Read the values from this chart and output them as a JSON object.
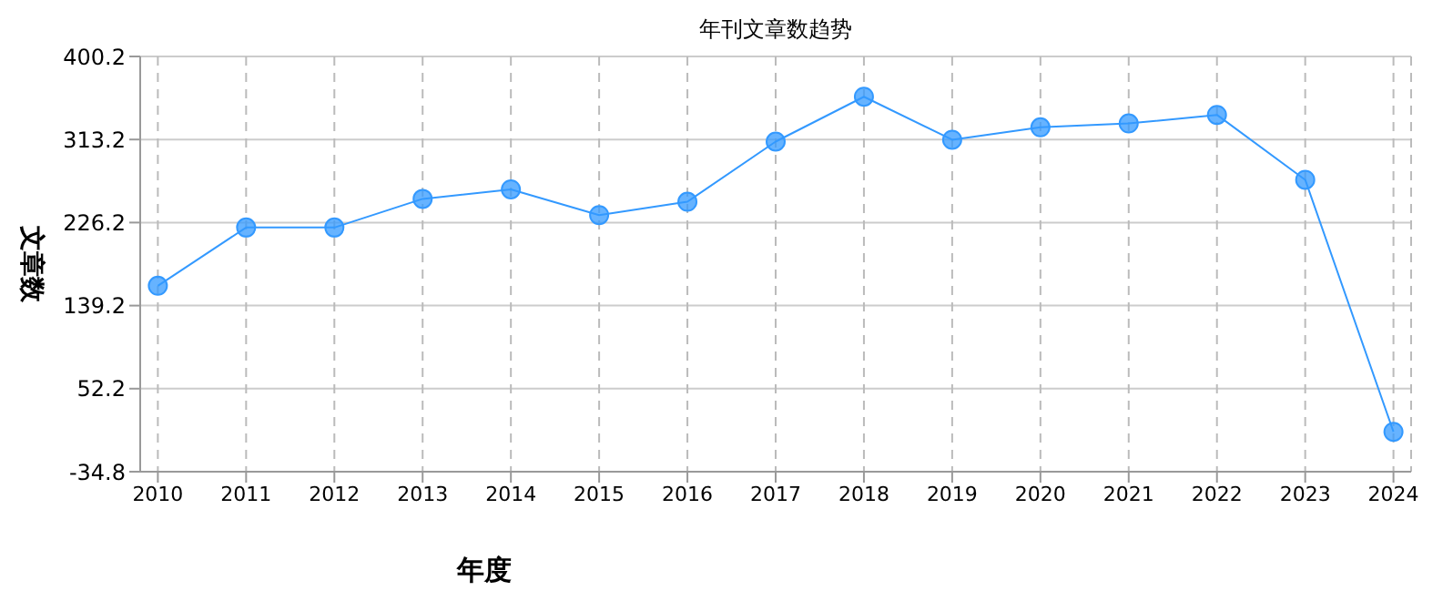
{
  "chart_data": {
    "type": "line",
    "title": "年刊文章数趋势",
    "xlabel": "年度",
    "ylabel": "文章数",
    "categories": [
      "2010",
      "2011",
      "2012",
      "2013",
      "2014",
      "2015",
      "2016",
      "2017",
      "2018",
      "2019",
      "2020",
      "2021",
      "2022",
      "2023",
      "2024"
    ],
    "series": [
      {
        "color": "#3399ff",
        "values": [
          160,
          221,
          221,
          251,
          261,
          234,
          248,
          311,
          358,
          313,
          326,
          330,
          339,
          271,
          7
        ]
      }
    ],
    "ylim": [
      -34.8,
      400.2
    ],
    "yticks": [
      -34.8,
      52.2,
      139.2,
      226.2,
      313.2,
      400.2
    ],
    "grid": true,
    "marker": "circle",
    "line_style": "solid"
  }
}
